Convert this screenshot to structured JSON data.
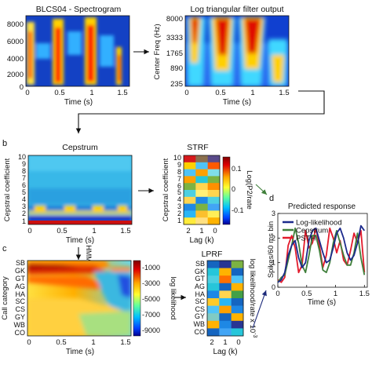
{
  "panel_a": {
    "spectrogram": {
      "title": "BLCS04 - Spectrogram",
      "xlabel": "Time (s)",
      "yticks": [
        "8000",
        "6000",
        "4000",
        "2000",
        "0"
      ],
      "xticks": [
        "0",
        "0.5",
        "1",
        "1.5"
      ]
    },
    "filterbank": {
      "title": "Log triangular filter output",
      "ylabel": "Center Freq (Hz)",
      "xlabel": "Time (s)",
      "yticks": [
        "8000",
        "3333",
        "1765",
        "890",
        "235"
      ],
      "xticks": [
        "0",
        "0.5",
        "1",
        "1.5"
      ]
    }
  },
  "panel_b": {
    "label": "b",
    "cepstrum": {
      "title": "Cepstrum",
      "ylabel": "Cepstral coefficient",
      "xlabel": "Time (s)",
      "yticks": [
        "10",
        "9",
        "8",
        "7",
        "6",
        "5",
        "4",
        "3",
        "2",
        "1"
      ],
      "xticks": [
        "0",
        "0.5",
        "1",
        "1.5"
      ]
    },
    "strf": {
      "title": "STRF",
      "ylabel": "Cepstral coefficient",
      "xlabel": "Lag (k)",
      "yticks": [
        "10",
        "9",
        "8",
        "7",
        "6",
        "5",
        "4",
        "3",
        "2",
        "1"
      ],
      "xticks": [
        "2",
        "1",
        "0"
      ],
      "cbar_label": "Log(P2/rate",
      "cbar_ticks": [
        "0.1",
        "0",
        "-0.1"
      ]
    },
    "hmm_label": "HMM"
  },
  "panel_c": {
    "label": "c",
    "loglik": {
      "ylabel": "Call category",
      "xlabel": "Time (s)",
      "categories": [
        "SB",
        "GK",
        "GT",
        "AG",
        "HA",
        "SC",
        "CS",
        "GY",
        "WB",
        "CO"
      ],
      "xticks": [
        "0",
        "0.5",
        "1",
        "1.5"
      ],
      "cbar_label": "log likelihood",
      "cbar_ticks": [
        "-1000",
        "-3000",
        "-5000",
        "-7000",
        "-9000"
      ]
    },
    "lprf": {
      "title": "LPRF",
      "xlabel": "Lag (k)",
      "categories": [
        "SB",
        "GK",
        "GT",
        "AG",
        "HA",
        "SC",
        "CS",
        "GY",
        "WB",
        "CO"
      ],
      "xticks": [
        "2",
        "1",
        "0"
      ],
      "cbar_label": "log likelihood/rate x 10",
      "cbar_exp": "-3"
    }
  },
  "panel_d": {
    "label": "d",
    "chart_data": {
      "type": "line",
      "title": "Predicted response",
      "xlabel": "Time (s)",
      "ylabel": "Spikes/60 ms bin",
      "xlim": [
        0,
        1.55
      ],
      "ylim": [
        0,
        3
      ],
      "xticks": [
        "0",
        "0.5",
        "1",
        "1.5"
      ],
      "yticks": [
        "0",
        "1",
        "2",
        "3"
      ],
      "x": [
        0,
        0.06,
        0.12,
        0.18,
        0.24,
        0.3,
        0.36,
        0.42,
        0.48,
        0.54,
        0.6,
        0.66,
        0.72,
        0.78,
        0.84,
        0.9,
        0.96,
        1.02,
        1.08,
        1.14,
        1.2,
        1.26,
        1.32,
        1.38,
        1.44,
        1.5
      ],
      "series": [
        {
          "name": "Log-likelihood",
          "color": "#1c2a8c",
          "values": [
            0.2,
            0.3,
            0.6,
            1.3,
            1.7,
            1.9,
            1.2,
            0.8,
            1.0,
            1.9,
            2.3,
            2.4,
            1.9,
            1.4,
            1.0,
            1.1,
            1.6,
            2.2,
            2.4,
            2.0,
            1.4,
            1.1,
            1.3,
            1.8,
            2.5,
            2.3
          ]
        },
        {
          "name": "Cepstrum",
          "color": "#3f7f3a",
          "values": [
            0.2,
            0.4,
            0.5,
            1.1,
            1.7,
            2.4,
            1.8,
            0.9,
            0.6,
            1.3,
            2.1,
            2.1,
            1.5,
            0.7,
            0.6,
            1.0,
            1.8,
            2.3,
            1.8,
            1.3,
            0.9,
            0.9,
            1.4,
            2.2,
            1.2,
            0.5
          ]
        },
        {
          "name": "PSTH",
          "color": "#e21a2b",
          "values": [
            0.3,
            0.2,
            0.4,
            1.7,
            2.1,
            1.6,
            0.6,
            0.9,
            2.3,
            1.6,
            1.8,
            2.4,
            1.7,
            0.8,
            1.3,
            2.4,
            2.0,
            1.4,
            1.9,
            1.1,
            0.9,
            1.5,
            2.2,
            1.8,
            2.3,
            0.6
          ]
        }
      ]
    }
  }
}
